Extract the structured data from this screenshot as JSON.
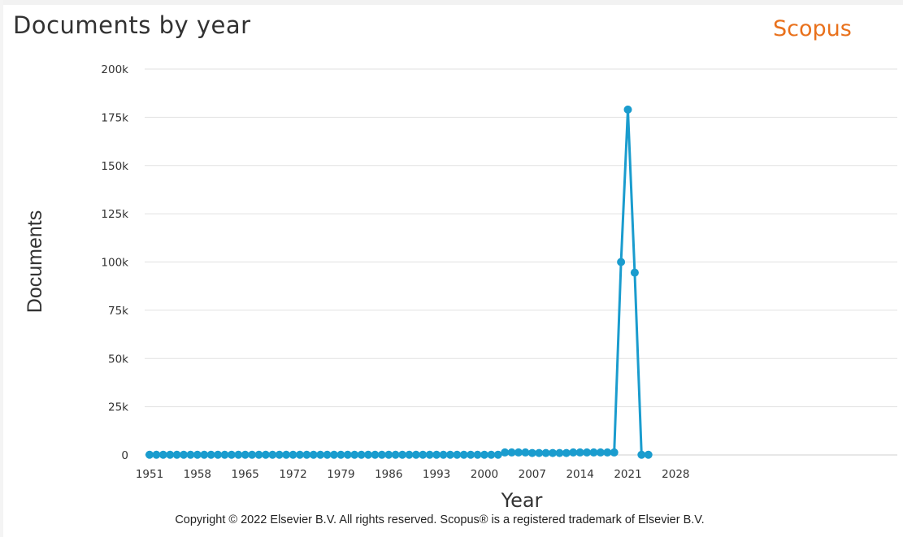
{
  "header": {
    "title": "Documents by year",
    "brand": "Scopus"
  },
  "footer": {
    "copyright": "Copyright © 2022 Elsevier B.V. All rights reserved. Scopus® is a registered trademark of Elsevier B.V."
  },
  "colors": {
    "series": "#1a9cce",
    "brand": "#e9711c",
    "grid": "#e2e2e2"
  },
  "chart_data": {
    "type": "line",
    "title": "Documents by year",
    "xlabel": "Year",
    "ylabel": "Documents",
    "xlim": [
      1950,
      2028
    ],
    "ylim": [
      0,
      200000
    ],
    "x_ticks": [
      1951,
      1958,
      1965,
      1972,
      1979,
      1986,
      1993,
      2000,
      2007,
      2014,
      2021,
      2028
    ],
    "y_ticks": [
      0,
      25000,
      50000,
      75000,
      100000,
      125000,
      150000,
      175000,
      200000
    ],
    "y_tick_labels": [
      "0",
      "25k",
      "50k",
      "75k",
      "100k",
      "125k",
      "150k",
      "175k",
      "200k"
    ],
    "grid": true,
    "series": [
      {
        "x": [
          1951,
          1952,
          1953,
          1954,
          1955,
          1956,
          1957,
          1958,
          1959,
          1960,
          1961,
          1962,
          1963,
          1964,
          1965,
          1966,
          1967,
          1968,
          1969,
          1970,
          1971,
          1972,
          1973,
          1974,
          1975,
          1976,
          1977,
          1978,
          1979,
          1980,
          1981,
          1982,
          1983,
          1984,
          1985,
          1986,
          1987,
          1988,
          1989,
          1990,
          1991,
          1992,
          1993,
          1994,
          1995,
          1996,
          1997,
          1998,
          1999,
          2000,
          2001,
          2002,
          2003,
          2004,
          2005,
          2006,
          2007,
          2008,
          2009,
          2010,
          2011,
          2012,
          2013,
          2014,
          2015,
          2016,
          2017,
          2018,
          2019,
          2020,
          2021,
          2022,
          2023,
          2024
        ],
        "values": [
          100,
          100,
          100,
          100,
          100,
          100,
          100,
          100,
          100,
          100,
          100,
          100,
          100,
          100,
          100,
          100,
          100,
          100,
          100,
          100,
          100,
          100,
          100,
          100,
          100,
          100,
          100,
          100,
          100,
          100,
          100,
          100,
          100,
          100,
          100,
          100,
          100,
          100,
          100,
          100,
          100,
          100,
          100,
          100,
          100,
          100,
          100,
          100,
          100,
          100,
          100,
          100,
          1300,
          1300,
          1300,
          1300,
          1000,
          1000,
          1000,
          1000,
          1000,
          1000,
          1300,
          1300,
          1300,
          1300,
          1300,
          1300,
          1300,
          100000,
          179000,
          94500,
          100,
          100
        ]
      }
    ]
  }
}
